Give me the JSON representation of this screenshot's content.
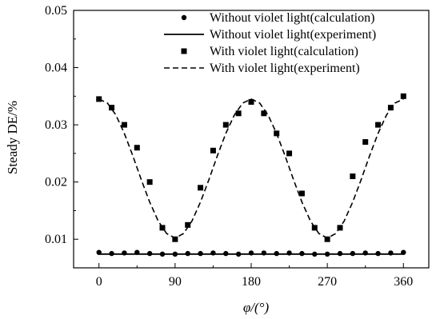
{
  "chart_data": {
    "type": "scatter",
    "xlabel": "φ/(°)",
    "ylabel": "Steady DE/%",
    "xlim": [
      -30,
      390
    ],
    "ylim": [
      0.005,
      0.05
    ],
    "xticks": [
      0,
      90,
      180,
      270,
      360
    ],
    "yticks": [
      0.01,
      0.02,
      0.03,
      0.04,
      0.05
    ],
    "xtick_labels": [
      "0",
      "90",
      "180",
      "270",
      "360"
    ],
    "ytick_labels": [
      "0.01",
      "0.02",
      "0.03",
      "0.04",
      "0.05"
    ],
    "grid": false,
    "legend_position": "top-right",
    "series": [
      {
        "name": "Without violet light(calculation)",
        "style": "circle-markers",
        "x": [
          0,
          15,
          30,
          45,
          60,
          75,
          90,
          105,
          120,
          135,
          150,
          165,
          180,
          195,
          210,
          225,
          240,
          255,
          270,
          285,
          300,
          315,
          330,
          345,
          360
        ],
        "y": [
          0.0077,
          0.0075,
          0.0076,
          0.0077,
          0.0075,
          0.0074,
          0.0074,
          0.0075,
          0.0075,
          0.0076,
          0.0075,
          0.0074,
          0.0076,
          0.0076,
          0.0075,
          0.0076,
          0.0075,
          0.0074,
          0.0074,
          0.0075,
          0.0075,
          0.0076,
          0.0075,
          0.0076,
          0.0077
        ]
      },
      {
        "name": "Without violet light(experiment)",
        "style": "solid-line",
        "x": [
          0,
          360
        ],
        "y": [
          0.0074,
          0.0074
        ]
      },
      {
        "name": "With violet light(calculation)",
        "style": "square-markers",
        "x": [
          0,
          15,
          30,
          45,
          60,
          75,
          90,
          105,
          120,
          135,
          150,
          165,
          180,
          195,
          210,
          225,
          240,
          255,
          270,
          285,
          300,
          315,
          330,
          345,
          360
        ],
        "y": [
          0.0345,
          0.033,
          0.03,
          0.026,
          0.02,
          0.012,
          0.01,
          0.0125,
          0.019,
          0.0255,
          0.03,
          0.032,
          0.034,
          0.032,
          0.0285,
          0.025,
          0.018,
          0.012,
          0.01,
          0.012,
          0.021,
          0.027,
          0.03,
          0.033,
          0.035
        ]
      },
      {
        "name": "With violet light(experiment)",
        "style": "dashed-line",
        "x": [
          0,
          10,
          20,
          30,
          40,
          50,
          60,
          70,
          80,
          90,
          100,
          110,
          120,
          130,
          140,
          150,
          160,
          170,
          180,
          190,
          200,
          210,
          220,
          230,
          240,
          250,
          260,
          270,
          280,
          290,
          300,
          310,
          320,
          330,
          340,
          350,
          360
        ],
        "y": [
          0.0345,
          0.0338,
          0.0317,
          0.0285,
          0.0246,
          0.0204,
          0.0165,
          0.0132,
          0.011,
          0.0102,
          0.011,
          0.0132,
          0.0165,
          0.0204,
          0.0246,
          0.0285,
          0.0317,
          0.0338,
          0.0345,
          0.0338,
          0.0317,
          0.0285,
          0.0246,
          0.0204,
          0.0165,
          0.0132,
          0.011,
          0.0102,
          0.011,
          0.0132,
          0.0165,
          0.0204,
          0.0246,
          0.0285,
          0.0317,
          0.0338,
          0.0345
        ]
      }
    ]
  }
}
